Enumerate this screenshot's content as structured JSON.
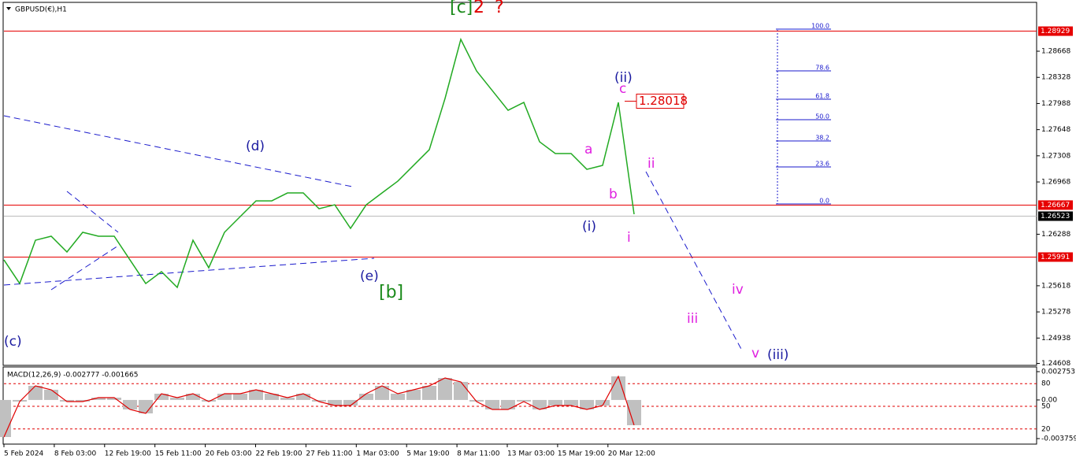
{
  "header": {
    "symbol": "GBPUSD(€),H1"
  },
  "price_axis": {
    "ylim": [
      1.29293,
      1.24593
    ],
    "ticks": [
      1.28668,
      1.28328,
      1.27988,
      1.27648,
      1.27308,
      1.26968,
      1.26288,
      1.25618,
      1.25278,
      1.24938,
      1.24608
    ]
  },
  "levels": [
    {
      "value": 1.28929,
      "color": "#e60000"
    },
    {
      "value": 1.26667,
      "color": "#e60000"
    },
    {
      "value": 1.25991,
      "color": "#e60000"
    },
    {
      "value": 1.26523,
      "color": "#000000"
    }
  ],
  "price_series": {
    "color": "#22aa22",
    "values": [
      1.25954,
      1.25647,
      1.2621,
      1.26262,
      1.26057,
      1.26313,
      1.26262,
      1.26262,
      1.25954,
      1.25647,
      1.25801,
      1.25596,
      1.2621,
      1.25852,
      1.26313,
      1.26518,
      1.26722,
      1.26722,
      1.26825,
      1.26825,
      1.2662,
      1.26671,
      1.26364,
      1.26671,
      1.26825,
      1.26978,
      1.27183,
      1.27388,
      1.28054,
      1.28822,
      1.28412,
      1.28156,
      1.279,
      1.28002,
      1.2749,
      1.27337,
      1.27337,
      1.27132,
      1.27183,
      1.28002,
      1.26548
    ]
  },
  "callout": 1.28018,
  "waves": [
    {
      "label": "[c]",
      "color": "#1a8a1a"
    },
    {
      "label": "2",
      "color": "#e00000"
    },
    {
      "label": "?",
      "color": "#e00000"
    },
    {
      "label": "(d)",
      "color": "#1a1aa0"
    },
    {
      "label": "(e)",
      "color": "#1a1aa0"
    },
    {
      "label": "[b]",
      "color": "#1a8a1a"
    },
    {
      "label": "(c)",
      "color": "#1a1aa0"
    },
    {
      "label": "(ii)",
      "color": "#1a1aa0"
    },
    {
      "label": "c",
      "color": "#e020e0"
    },
    {
      "label": "a",
      "color": "#e020e0"
    },
    {
      "label": "b",
      "color": "#e020e0"
    },
    {
      "label": "(i)",
      "color": "#1a1aa0"
    },
    {
      "label": "i",
      "color": "#e020e0"
    },
    {
      "label": "ii",
      "color": "#e020e0"
    },
    {
      "label": "iii",
      "color": "#e020e0"
    },
    {
      "label": "iv",
      "color": "#e020e0"
    },
    {
      "label": "v",
      "color": "#e020e0"
    },
    {
      "label": "(iii)",
      "color": "#1a1aa0"
    }
  ],
  "fibonacci": {
    "levels": [
      "100.0",
      "78.6",
      "61.8",
      "50.0",
      "38.2",
      "23.6",
      "0.0"
    ]
  },
  "time_axis": [
    "5 Feb 2024",
    "8 Feb 03:00",
    "12 Feb 19:00",
    "15 Feb 11:00",
    "20 Feb 03:00",
    "22 Feb 19:00",
    "27 Feb 11:00",
    "1 Mar 03:00",
    "5 Mar 19:00",
    "8 Mar 11:00",
    "13 Mar 03:00",
    "15 Mar 19:00",
    "20 Mar 12:00"
  ],
  "macd": {
    "title": "MACD(12,26,9) -0.002777 -0.001665",
    "ylim": [
      0.002753,
      -0.003759
    ],
    "ticks": [
      0.002753,
      {
        "value": 0,
        "label": "0.00"
      },
      -0.003759
    ],
    "levels": [
      80,
      50,
      20
    ],
    "level_lim": [
      0,
      100
    ],
    "color": "#e00000",
    "values": [
      -0.003605,
      -0.000158,
      0.001374,
      0.000991,
      -0.000158,
      -0.000158,
      0.000225,
      0.000225,
      -0.000924,
      -0.001307,
      0.000608,
      0.000225,
      0.000608,
      -0.000158,
      0.000608,
      0.000608,
      0.000991,
      0.000608,
      0.000225,
      0.000608,
      -0.000158,
      -0.000541,
      -0.000541,
      0.000608,
      0.001374,
      0.000608,
      0.000991,
      0.001374,
      0.00214,
      0.001757,
      -0.000158,
      -0.000924,
      -0.000924,
      -0.000158,
      -0.000924,
      -0.000541,
      -0.000541,
      -0.000924,
      -0.000541,
      0.002293,
      -0.002456
    ]
  }
}
